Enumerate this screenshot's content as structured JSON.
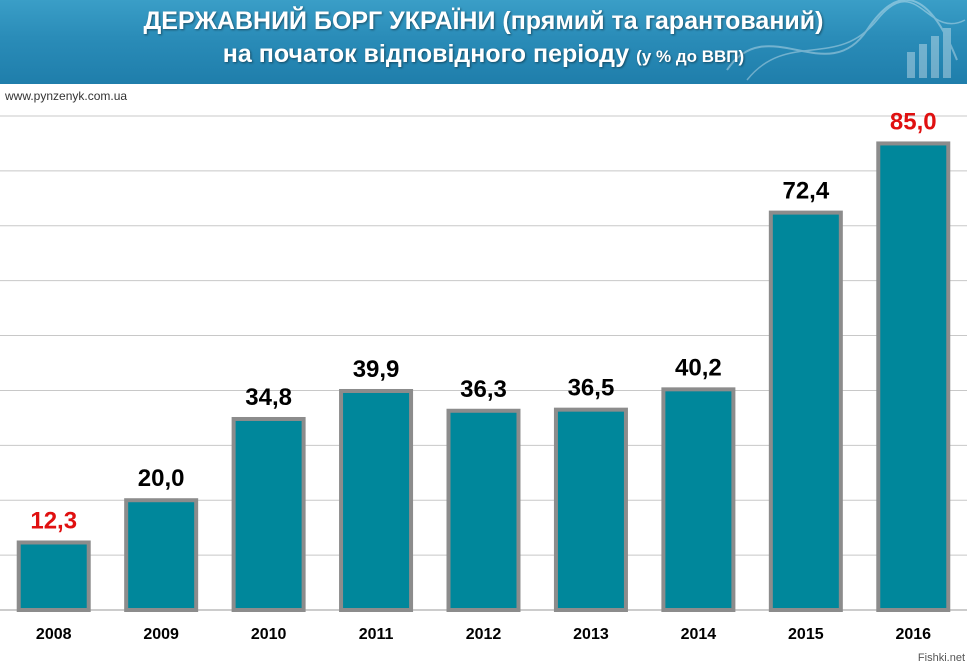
{
  "header": {
    "title_line1": "ДЕРЖАВНИЙ БОРГ  УКРАЇНИ (прямий та гарантований)",
    "title_line2_main": "на початок відповідного періоду",
    "title_line2_small": "(у % до ВВП)"
  },
  "source": "www.pynzenyk.com.ua",
  "watermark": "Fishki.net",
  "colors": {
    "header_bg": "#2a8cb8",
    "bar_fill": "#00879b",
    "bar_stroke": "#8c8c8c",
    "label_default": "#000000",
    "label_highlight": "#e01010",
    "grid": "#c8c8c8"
  },
  "chart_data": {
    "type": "bar",
    "categories": [
      "2008",
      "2009",
      "2010",
      "2011",
      "2012",
      "2013",
      "2014",
      "2015",
      "2016"
    ],
    "values": [
      12.3,
      20.0,
      34.8,
      39.9,
      36.3,
      36.5,
      40.2,
      72.4,
      85.0
    ],
    "value_labels": [
      "12,3",
      "20,0",
      "34,8",
      "39,9",
      "36,3",
      "36,5",
      "40,2",
      "72,4",
      "85,0"
    ],
    "highlighted": [
      "2008",
      "2016"
    ],
    "ylim": [
      0,
      90
    ],
    "grid": true,
    "xlabel": "",
    "ylabel": ""
  }
}
